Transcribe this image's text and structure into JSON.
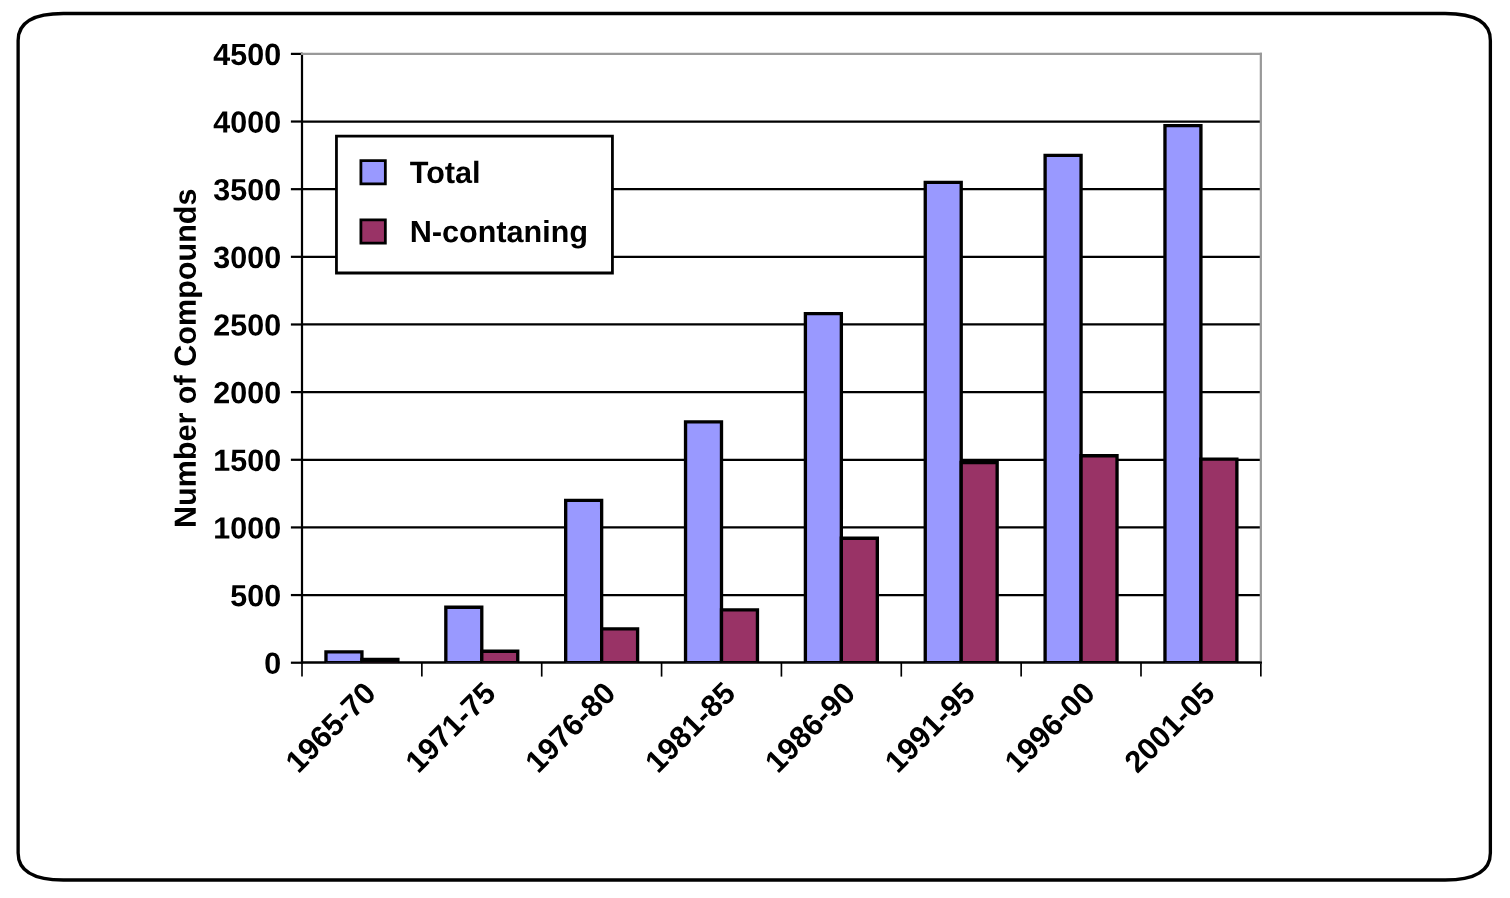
{
  "chart_data": {
    "type": "bar",
    "ylabel": "Number of Compounds",
    "categories": [
      "1965-70",
      "1971-75",
      "1976-80",
      "1981-85",
      "1986-90",
      "1991-95",
      "1996-00",
      "2001-05"
    ],
    "series": [
      {
        "name": "Total",
        "color": "#9999ff",
        "values": [
          80,
          410,
          1200,
          1780,
          2580,
          3550,
          3750,
          3970
        ]
      },
      {
        "name": "N-contaning",
        "color": "#993366",
        "values": [
          25,
          85,
          250,
          390,
          920,
          1480,
          1530,
          1505
        ]
      }
    ],
    "ylim": [
      0,
      4500
    ],
    "yticks": [
      0,
      500,
      1000,
      1500,
      2000,
      2500,
      3000,
      3500,
      4000,
      4500
    ],
    "grid": "y",
    "legend": "top left"
  }
}
